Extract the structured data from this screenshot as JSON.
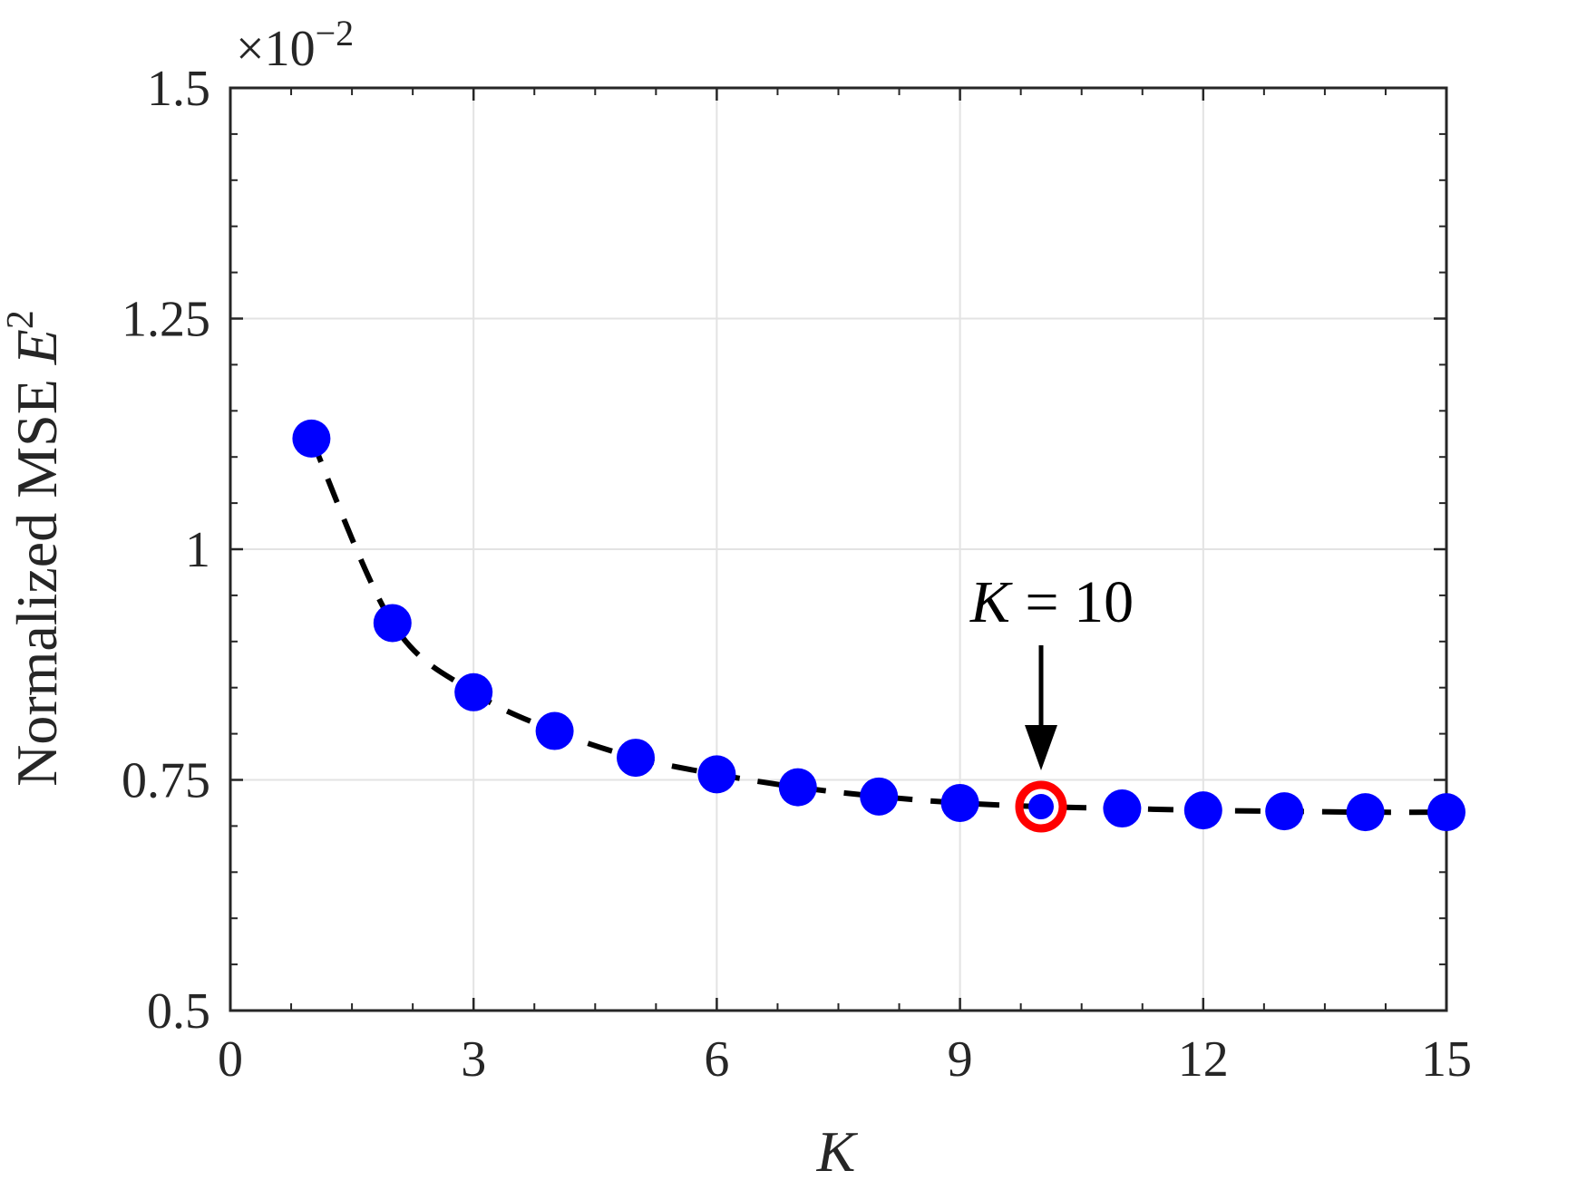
{
  "chart_data": {
    "type": "scatter",
    "x": [
      1,
      2,
      3,
      4,
      5,
      6,
      7,
      8,
      9,
      10,
      11,
      12,
      13,
      14,
      15
    ],
    "series": [
      {
        "values": [
          1.12,
          0.92,
          0.845,
          0.803,
          0.774,
          0.756,
          0.742,
          0.732,
          0.725,
          0.721,
          0.719,
          0.717,
          0.716,
          0.715,
          0.715
        ],
        "color": "#0000ff",
        "line_color": "#000000",
        "line_style": "dashed"
      }
    ],
    "xlim": [
      0,
      15
    ],
    "ylim": [
      0.5,
      1.5
    ],
    "xticks": [
      0,
      3,
      6,
      9,
      12,
      15
    ],
    "xtick_labels": [
      "0",
      "3",
      "6",
      "9",
      "12",
      "15"
    ],
    "yticks": [
      0.5,
      0.75,
      1,
      1.25,
      1.5
    ],
    "ytick_labels": [
      "0.5",
      "0.75",
      "1",
      "1.25",
      "1.5"
    ],
    "y_exponent_label": {
      "base": "×10",
      "exp": "−2"
    },
    "xlabel": "K",
    "ylabel": {
      "text": "Normalized MSE ",
      "symbol": "E",
      "sup": "2"
    },
    "grid": true,
    "highlight": {
      "x": 10,
      "y": 0.721,
      "color": "#ff0000"
    },
    "annotation": {
      "text_var": "K",
      "text_rest": " = 10",
      "x": 10
    }
  }
}
